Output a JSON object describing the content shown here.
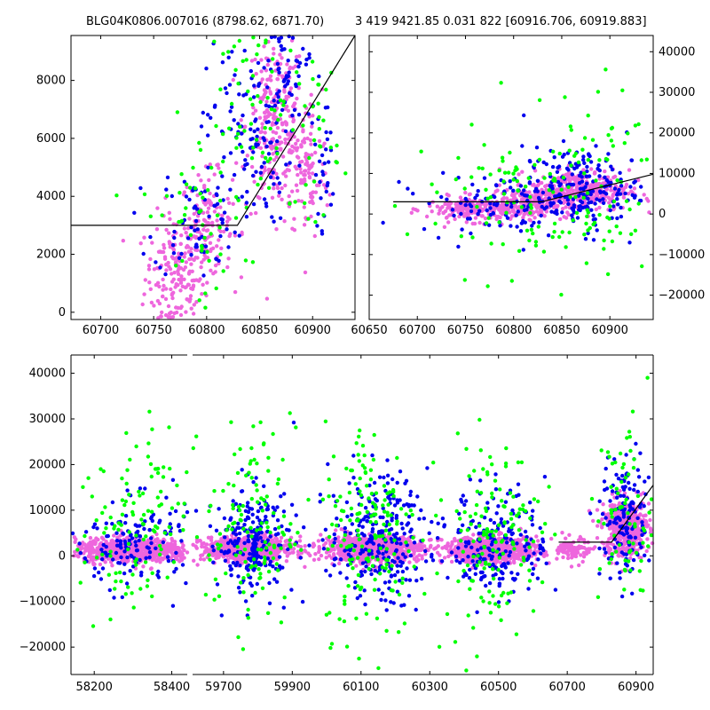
{
  "colors": {
    "green": "#00ff00",
    "blue": "#0000ee",
    "pink": "#ee66dd",
    "line": "#000000"
  },
  "chart_data": [
    {
      "id": "top-left",
      "type": "scatter",
      "title": "BLG04K0806.007016 (8798.62, 6871.70)",
      "xlim": [
        60672,
        60940
      ],
      "ylim": [
        -250,
        9550
      ],
      "xticks": [
        60700,
        60750,
        60800,
        60850,
        60900
      ],
      "yticks": [
        0,
        2000,
        4000,
        6000,
        8000
      ],
      "yaxis_side": "left",
      "model_line": [
        [
          60672,
          3000
        ],
        [
          60829,
          3000
        ],
        [
          60940,
          9550
        ]
      ],
      "series": [
        {
          "name": "pink",
          "color": "pink",
          "clusters": [
            [
              60770,
              1200,
              14,
              1100,
              180
            ],
            [
              60800,
              3000,
              12,
              900,
              140
            ],
            [
              60865,
              6500,
              14,
              1500,
              260
            ],
            [
              60895,
              4800,
              10,
              1200,
              100
            ]
          ]
        },
        {
          "name": "blue",
          "color": "blue",
          "clusters": [
            [
              60790,
              3200,
              20,
              1000,
              70
            ],
            [
              60840,
              6200,
              20,
              1600,
              120
            ],
            [
              60880,
              8200,
              15,
              1200,
              60
            ],
            [
              60912,
              4700,
              5,
              900,
              25
            ]
          ]
        },
        {
          "name": "green",
          "color": "green",
          "clusters": [
            [
              60790,
              3400,
              25,
              1600,
              50
            ],
            [
              60850,
              6500,
              25,
              1800,
              70
            ],
            [
              60905,
              6400,
              10,
              1500,
              30
            ]
          ]
        }
      ]
    },
    {
      "id": "top-right",
      "type": "scatter",
      "title": "3 419 9421.85 0.031 822 [60916.706, 60919.883]",
      "xlim": [
        60650,
        60945
      ],
      "ylim": [
        -26000,
        44000
      ],
      "xticks": [
        60650,
        60700,
        60750,
        60800,
        60850,
        60900
      ],
      "yticks": [
        -20000,
        -10000,
        0,
        10000,
        20000,
        30000,
        40000
      ],
      "yaxis_side": "right",
      "model_line": [
        [
          60675,
          3000
        ],
        [
          60829,
          3000
        ],
        [
          60945,
          9800
        ]
      ],
      "series": [
        {
          "name": "pink",
          "color": "pink",
          "clusters": [
            [
              60760,
              1200,
              25,
              1500,
              220
            ],
            [
              60815,
              2600,
              20,
              1800,
              180
            ],
            [
              60870,
              5800,
              25,
              2500,
              380
            ]
          ]
        },
        {
          "name": "blue",
          "color": "blue",
          "clusters": [
            [
              60790,
              2500,
              45,
              3500,
              110
            ],
            [
              60870,
              6500,
              30,
              5000,
              170
            ],
            [
              60850,
              5000,
              80,
              11000,
              25
            ]
          ]
        },
        {
          "name": "green",
          "color": "green",
          "clusters": [
            [
              60790,
              3000,
              50,
              9000,
              70
            ],
            [
              60870,
              7000,
              40,
              12000,
              90
            ]
          ]
        }
      ]
    },
    {
      "id": "bottom",
      "type": "scatter",
      "title": "",
      "ylim": [
        -26000,
        44000
      ],
      "yticks": [
        -20000,
        -10000,
        0,
        10000,
        20000,
        30000,
        40000
      ],
      "yaxis_side": "left",
      "segments": [
        {
          "xlim": [
            58140,
            58440
          ],
          "xticks": [
            58200,
            58400
          ]
        },
        {
          "xlim": [
            59610,
            60950
          ],
          "xticks": [
            59700,
            59900,
            60100,
            60300,
            60500,
            60700,
            60900
          ]
        }
      ],
      "model_line": [
        [
          60675,
          3000
        ],
        [
          60829,
          3000
        ],
        [
          60950,
          15500
        ]
      ],
      "series": [
        {
          "name": "pink",
          "color": "pink",
          "clusters": [
            [
              58300,
              1200,
              75,
              1300,
              650
            ],
            [
              59770,
              1500,
              65,
              1300,
              700
            ],
            [
              60130,
              1600,
              70,
              1400,
              750
            ],
            [
              60480,
              1300,
              70,
              1400,
              700
            ],
            [
              60870,
              6000,
              35,
              3200,
              420
            ],
            [
              60720,
              1200,
              22,
              1300,
              90
            ]
          ]
        },
        {
          "name": "blue",
          "color": "blue",
          "clusters": [
            [
              58300,
              3000,
              70,
              5000,
              150
            ],
            [
              59780,
              3500,
              65,
              6000,
              200
            ],
            [
              60150,
              4000,
              70,
              7000,
              260
            ],
            [
              60500,
              3000,
              70,
              6000,
              200
            ],
            [
              60870,
              8000,
              35,
              7000,
              140
            ],
            [
              59790,
              600,
              4,
              1800,
              60
            ]
          ]
        },
        {
          "name": "green",
          "color": "green",
          "clusters": [
            [
              58300,
              5000,
              70,
              11000,
              120
            ],
            [
              59780,
              6000,
              65,
              11000,
              130
            ],
            [
              60130,
              6000,
              70,
              12000,
              170
            ],
            [
              60480,
              5000,
              70,
              10000,
              140
            ],
            [
              60870,
              9000,
              40,
              11000,
              70
            ]
          ]
        }
      ]
    }
  ]
}
